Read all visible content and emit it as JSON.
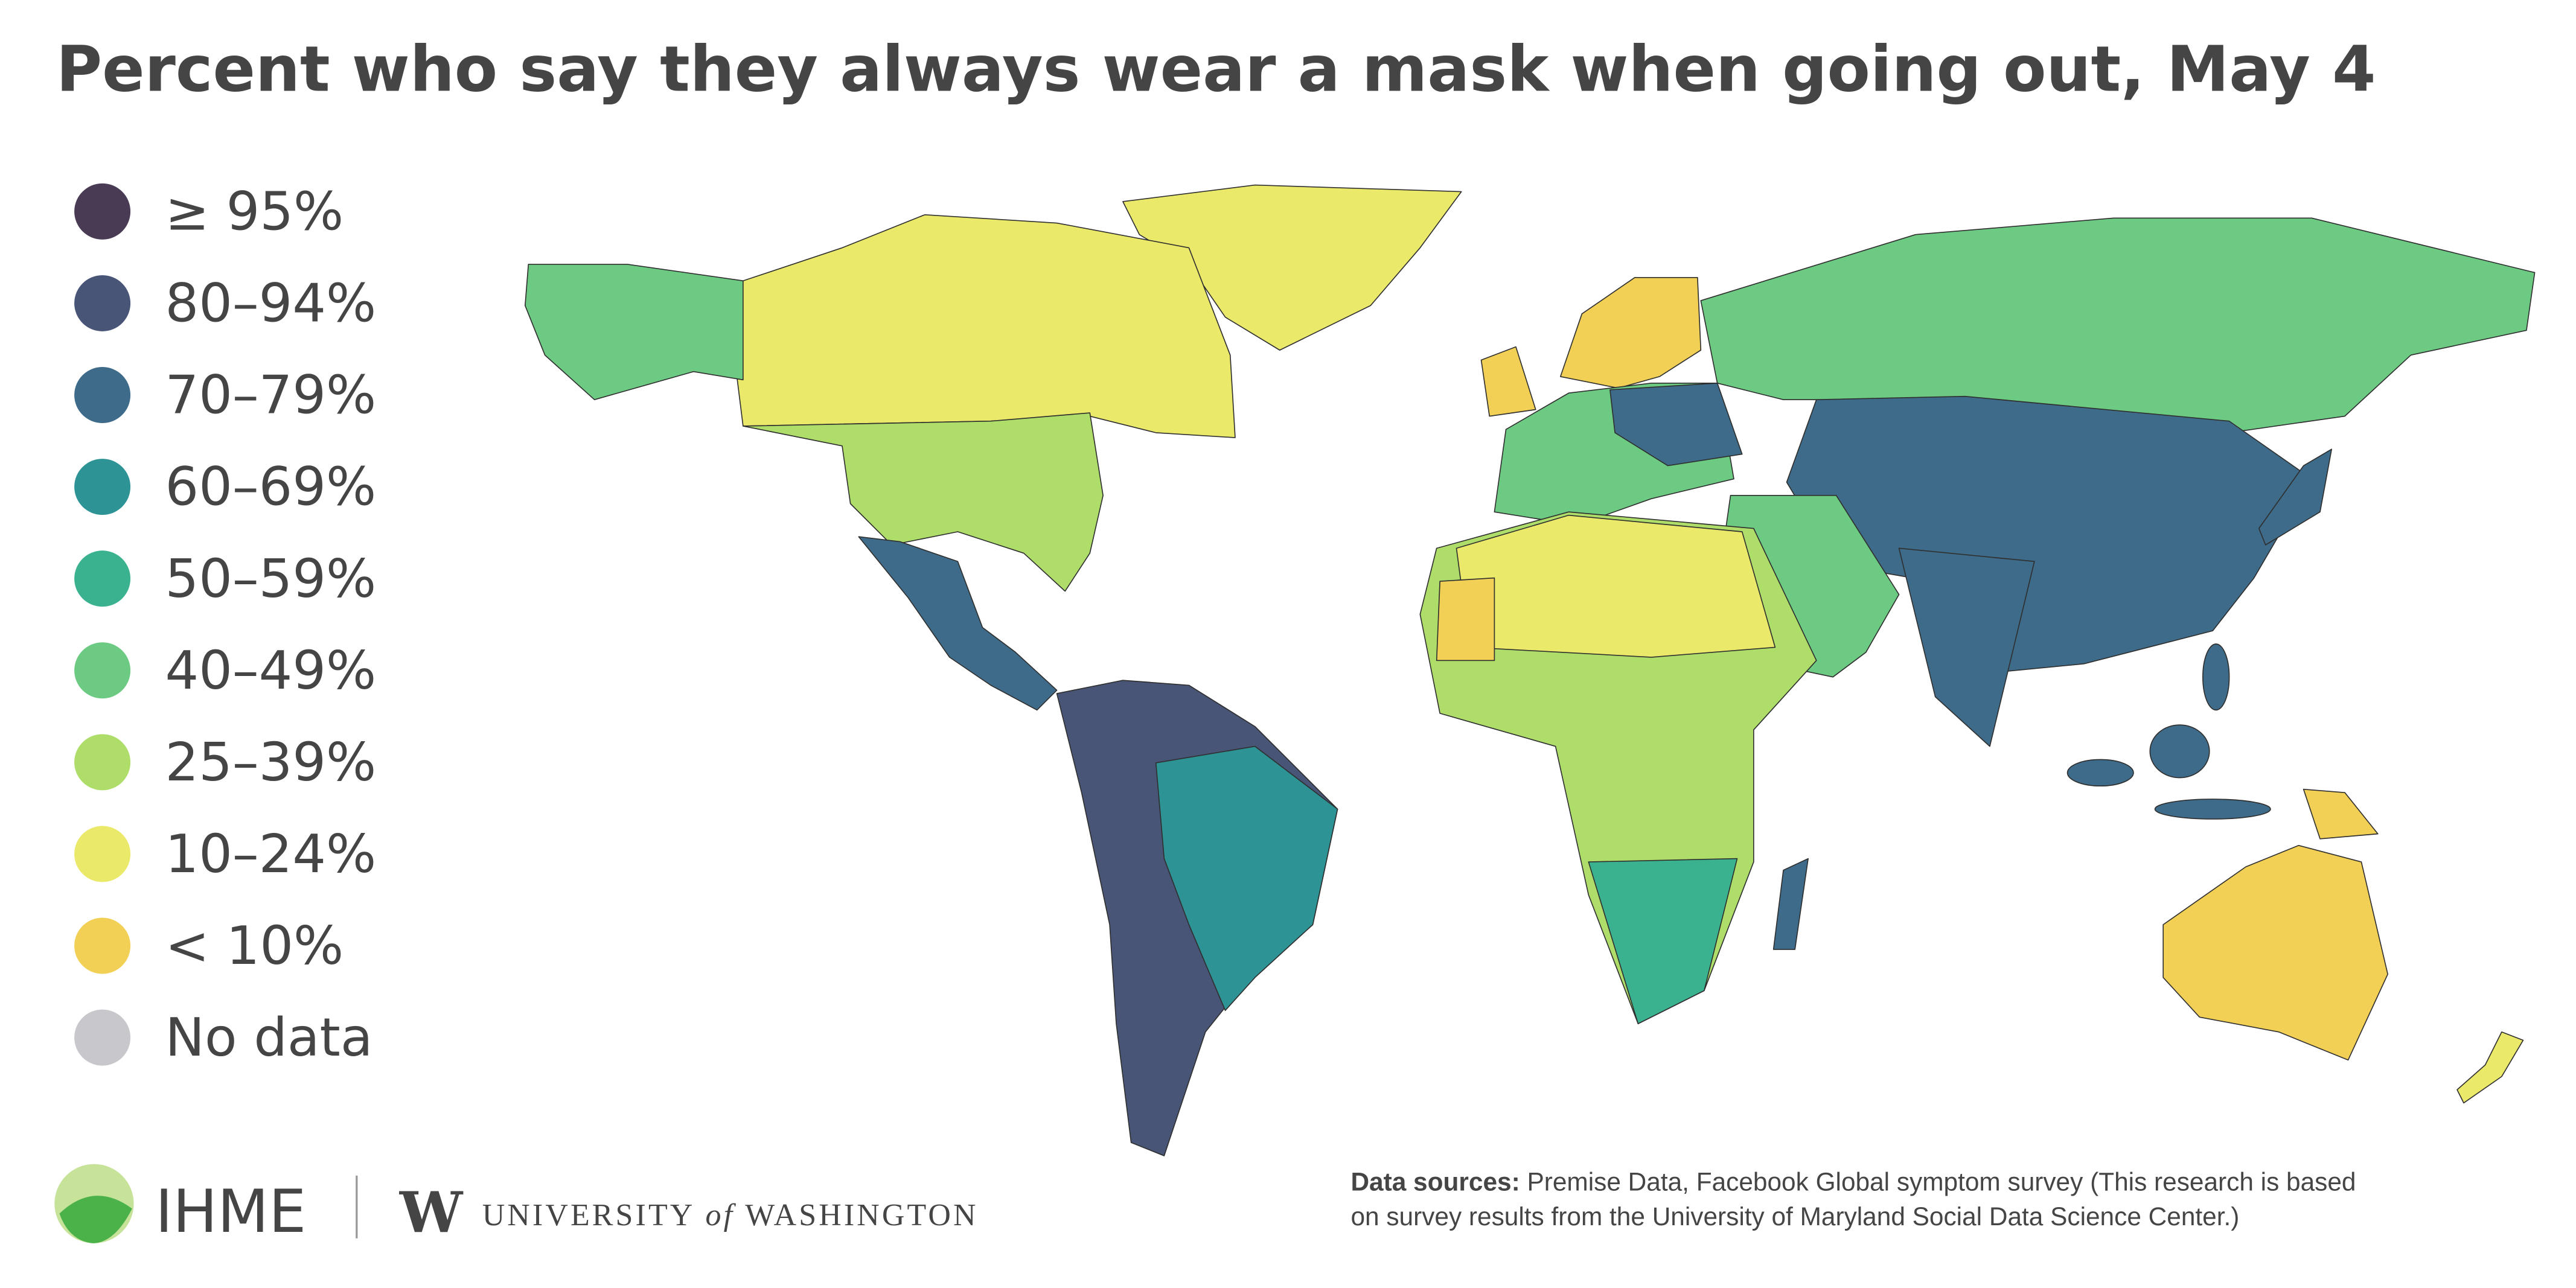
{
  "title": "Percent who say they always wear a mask when going out, May 4",
  "legend": [
    {
      "label": "≥ 95%",
      "color": "#4a3b55"
    },
    {
      "label": "80–94%",
      "color": "#485577"
    },
    {
      "label": "70–79%",
      "color": "#3e6b89"
    },
    {
      "label": "60–69%",
      "color": "#2d9395"
    },
    {
      "label": "50–59%",
      "color": "#3bb28f"
    },
    {
      "label": "40–49%",
      "color": "#6cca82"
    },
    {
      "label": "25–39%",
      "color": "#aedd6a"
    },
    {
      "label": "10–24%",
      "color": "#ebe96a"
    },
    {
      "label": "< 10%",
      "color": "#f2d055"
    },
    {
      "label": "No data",
      "color": "#c8c8cc"
    }
  ],
  "logos": {
    "ihme": "IHME",
    "uw_mark": "W",
    "uw_name_1": "UNIVERSITY",
    "uw_name_of": "of",
    "uw_name_2": "WASHINGTON"
  },
  "sources": {
    "label": "Data sources:",
    "line1": "Premise Data, Facebook Global symptom survey (This research is based",
    "line2": "on survey results from the University of Maryland Social Data Science Center.)"
  }
}
